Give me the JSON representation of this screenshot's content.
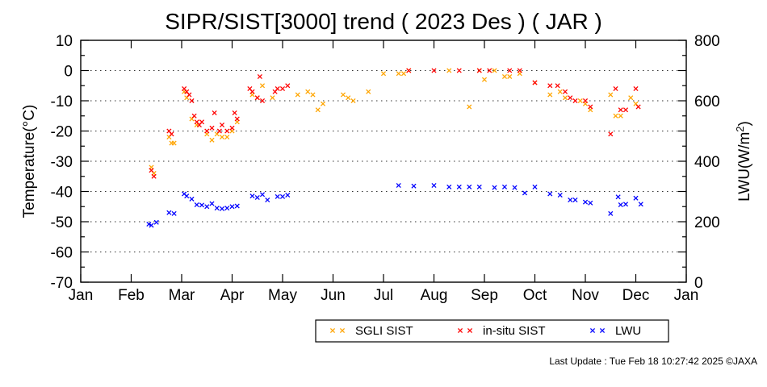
{
  "chart_data": {
    "type": "scatter",
    "title": "SIPR/SIST[3000] trend ( 2023 Des ) ( JAR )",
    "ylabel": "Temperature(°C)",
    "y2label_base": "LWU(W/m",
    "y2label_sup": "2",
    "y2label_end": ")",
    "x_ticks": [
      "Jan",
      "Feb",
      "Mar",
      "Apr",
      "May",
      "Jun",
      "Jul",
      "Aug",
      "Sep",
      "Oct",
      "Nov",
      "Dec",
      "Jan"
    ],
    "xlim": [
      0,
      12
    ],
    "ylim": [
      -70,
      10
    ],
    "y_ticks": [
      "10",
      "0",
      "-10",
      "-20",
      "-30",
      "-40",
      "-50",
      "-60",
      "-70"
    ],
    "y2lim": [
      0,
      800
    ],
    "y2_ticks": [
      "800",
      "600",
      "400",
      "200",
      "0"
    ],
    "grid": true,
    "legend_placement": "bottom",
    "series": [
      {
        "name": "SGLI SIST",
        "color": "#ffa500",
        "axis": "left",
        "points": [
          [
            1.4,
            -32
          ],
          [
            1.45,
            -34
          ],
          [
            1.75,
            -22
          ],
          [
            1.8,
            -24
          ],
          [
            1.85,
            -24
          ],
          [
            2.05,
            -7
          ],
          [
            2.1,
            -9
          ],
          [
            2.2,
            -16
          ],
          [
            2.3,
            -18
          ],
          [
            2.5,
            -21
          ],
          [
            2.6,
            -23
          ],
          [
            2.7,
            -21
          ],
          [
            2.8,
            -22
          ],
          [
            2.9,
            -22
          ],
          [
            3.0,
            -20
          ],
          [
            3.1,
            -17
          ],
          [
            3.4,
            -8
          ],
          [
            3.5,
            -9
          ],
          [
            3.6,
            -5
          ],
          [
            3.8,
            -9
          ],
          [
            4.3,
            -8
          ],
          [
            4.5,
            -7
          ],
          [
            4.6,
            -8
          ],
          [
            4.7,
            -13
          ],
          [
            4.8,
            -11
          ],
          [
            5.2,
            -8
          ],
          [
            5.3,
            -9
          ],
          [
            5.4,
            -10
          ],
          [
            5.7,
            -7
          ],
          [
            6.0,
            -1
          ],
          [
            6.3,
            -1
          ],
          [
            6.4,
            -1
          ],
          [
            6.5,
            0
          ],
          [
            7.3,
            0
          ],
          [
            7.7,
            -12
          ],
          [
            7.9,
            0
          ],
          [
            8.0,
            -3
          ],
          [
            8.2,
            0
          ],
          [
            8.4,
            -2
          ],
          [
            8.5,
            -2
          ],
          [
            8.7,
            -1
          ],
          [
            9.0,
            -4
          ],
          [
            9.3,
            -8
          ],
          [
            9.5,
            -7
          ],
          [
            9.6,
            -9
          ],
          [
            9.9,
            -10
          ],
          [
            10.0,
            -11
          ],
          [
            10.1,
            -13
          ],
          [
            10.5,
            -8
          ],
          [
            10.6,
            -15
          ],
          [
            10.7,
            -15
          ],
          [
            10.9,
            -9
          ],
          [
            11.0,
            -11
          ]
        ]
      },
      {
        "name": "in-situ SIST",
        "color": "#ff0000",
        "axis": "left",
        "points": [
          [
            1.4,
            -33
          ],
          [
            1.45,
            -35
          ],
          [
            1.75,
            -20
          ],
          [
            1.8,
            -21
          ],
          [
            2.05,
            -6
          ],
          [
            2.1,
            -7
          ],
          [
            2.15,
            -8
          ],
          [
            2.2,
            -10
          ],
          [
            2.25,
            -15
          ],
          [
            2.3,
            -17
          ],
          [
            2.35,
            -18
          ],
          [
            2.4,
            -17
          ],
          [
            2.5,
            -20
          ],
          [
            2.6,
            -19
          ],
          [
            2.65,
            -14
          ],
          [
            2.75,
            -20
          ],
          [
            2.8,
            -18
          ],
          [
            2.9,
            -20
          ],
          [
            3.0,
            -19
          ],
          [
            3.05,
            -14
          ],
          [
            3.1,
            -16
          ],
          [
            3.35,
            -6
          ],
          [
            3.4,
            -7
          ],
          [
            3.5,
            -9
          ],
          [
            3.55,
            -2
          ],
          [
            3.6,
            -10
          ],
          [
            3.85,
            -7
          ],
          [
            3.9,
            -6
          ],
          [
            4.0,
            -6
          ],
          [
            4.1,
            -5
          ],
          [
            6.5,
            0
          ],
          [
            7.0,
            0
          ],
          [
            7.5,
            0
          ],
          [
            7.9,
            0
          ],
          [
            8.1,
            0
          ],
          [
            8.5,
            0
          ],
          [
            8.7,
            0
          ],
          [
            9.0,
            -4
          ],
          [
            9.3,
            -5
          ],
          [
            9.45,
            -5
          ],
          [
            9.6,
            -7
          ],
          [
            9.7,
            -9
          ],
          [
            9.8,
            -10
          ],
          [
            10.0,
            -10
          ],
          [
            10.1,
            -12
          ],
          [
            10.5,
            -21
          ],
          [
            10.6,
            -6
          ],
          [
            10.7,
            -13
          ],
          [
            10.8,
            -13
          ],
          [
            11.0,
            -6
          ],
          [
            11.05,
            -12
          ]
        ]
      },
      {
        "name": "LWU",
        "color": "#0000ff",
        "axis": "right",
        "points": [
          [
            1.35,
            192
          ],
          [
            1.4,
            188
          ],
          [
            1.5,
            198
          ],
          [
            1.75,
            230
          ],
          [
            1.85,
            227
          ],
          [
            2.05,
            292
          ],
          [
            2.1,
            285
          ],
          [
            2.2,
            275
          ],
          [
            2.3,
            256
          ],
          [
            2.4,
            255
          ],
          [
            2.5,
            250
          ],
          [
            2.6,
            260
          ],
          [
            2.7,
            245
          ],
          [
            2.8,
            243
          ],
          [
            2.9,
            245
          ],
          [
            3.0,
            250
          ],
          [
            3.1,
            252
          ],
          [
            3.4,
            285
          ],
          [
            3.5,
            280
          ],
          [
            3.6,
            290
          ],
          [
            3.7,
            272
          ],
          [
            3.9,
            283
          ],
          [
            4.0,
            283
          ],
          [
            4.1,
            288
          ],
          [
            6.3,
            320
          ],
          [
            6.6,
            318
          ],
          [
            7.0,
            320
          ],
          [
            7.3,
            315
          ],
          [
            7.5,
            315
          ],
          [
            7.7,
            315
          ],
          [
            7.9,
            315
          ],
          [
            8.2,
            313
          ],
          [
            8.4,
            315
          ],
          [
            8.6,
            313
          ],
          [
            8.8,
            295
          ],
          [
            9.0,
            315
          ],
          [
            9.3,
            292
          ],
          [
            9.5,
            288
          ],
          [
            9.7,
            272
          ],
          [
            9.8,
            272
          ],
          [
            10.0,
            265
          ],
          [
            10.1,
            262
          ],
          [
            10.5,
            227
          ],
          [
            10.65,
            282
          ],
          [
            10.7,
            256
          ],
          [
            10.8,
            258
          ],
          [
            11.0,
            278
          ],
          [
            11.1,
            258
          ]
        ]
      }
    ]
  },
  "footer": {
    "last_update": "Last Update : Tue Feb 18 10:27:42 2025 ©JAXA"
  }
}
